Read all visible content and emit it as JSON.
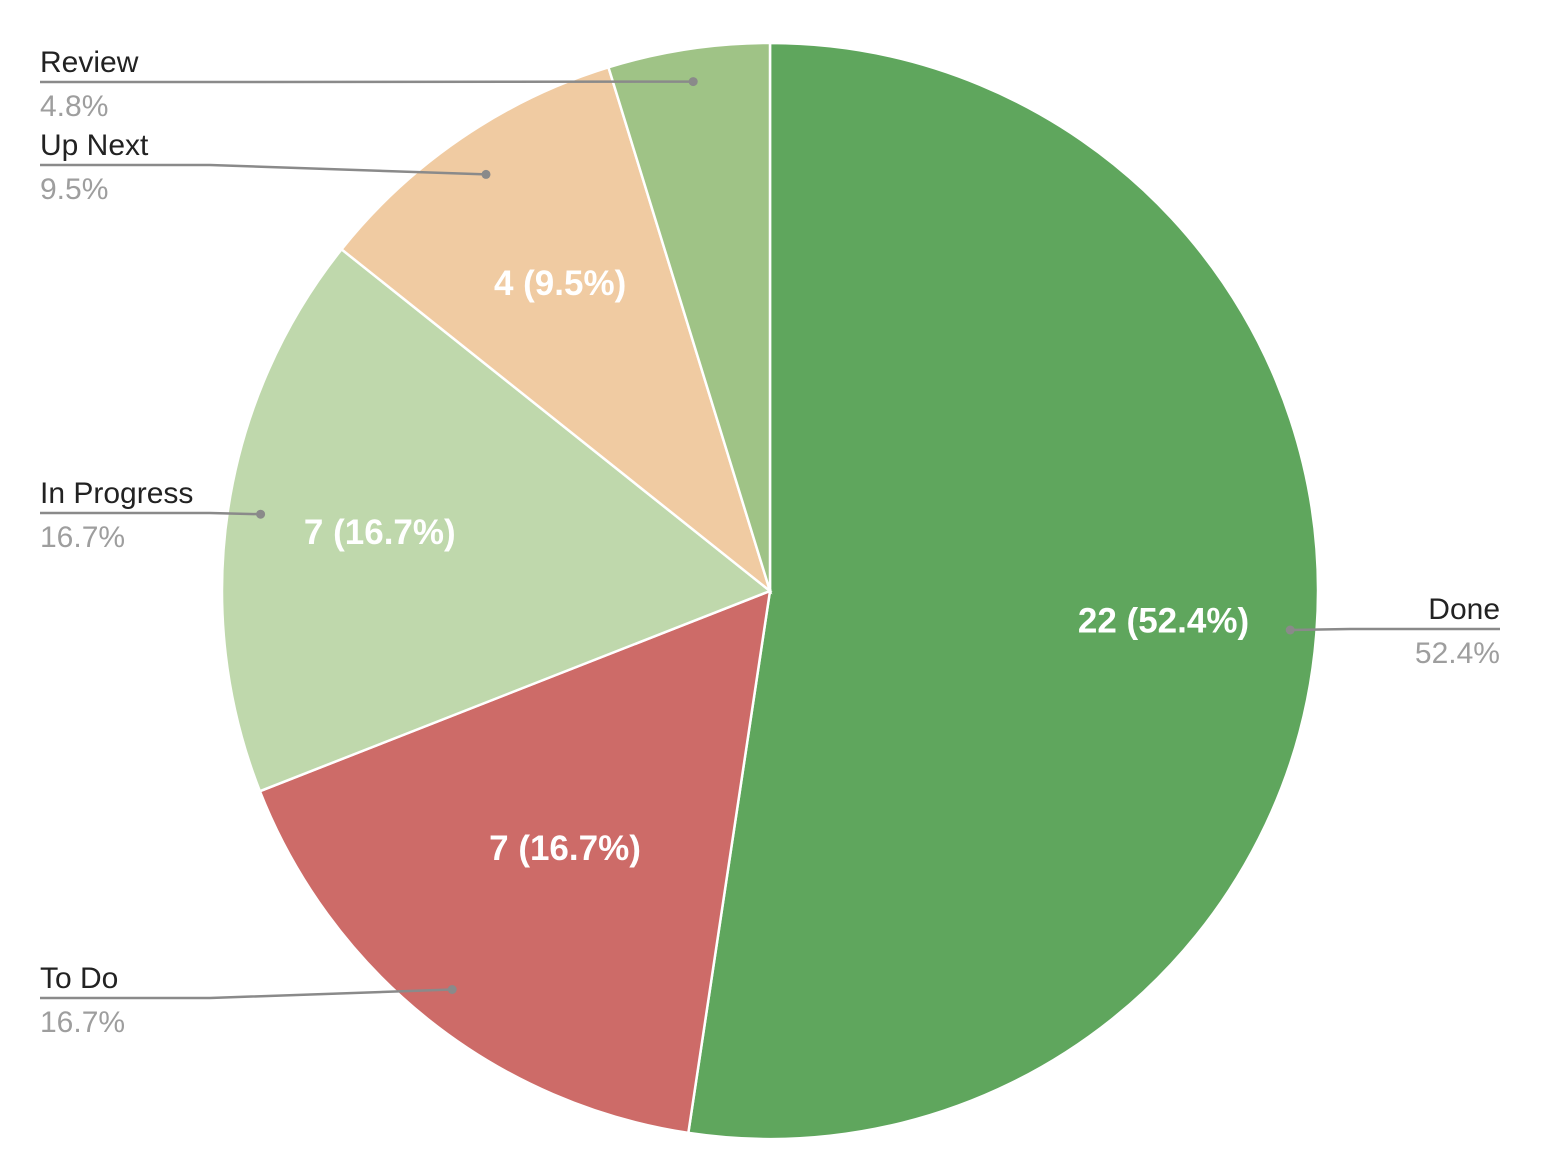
{
  "chart_data": {
    "type": "pie",
    "title": "",
    "slices": [
      {
        "name": "Done",
        "value": 22,
        "percent": "52.4%",
        "label": "22 (52.4%)",
        "color": "#5fa65d"
      },
      {
        "name": "To Do",
        "value": 7,
        "percent": "16.7%",
        "label": "7 (16.7%)",
        "color": "#cd6b68"
      },
      {
        "name": "In Progress",
        "value": 7,
        "percent": "16.7%",
        "label": "7 (16.7%)",
        "color": "#bfd8ac"
      },
      {
        "name": "Up Next",
        "value": 4,
        "percent": "9.5%",
        "label": "4 (9.5%)",
        "color": "#f0cba2"
      },
      {
        "name": "Review",
        "value": 2,
        "percent": "4.8%",
        "label": "",
        "color": "#9fc386"
      }
    ],
    "start_angle_deg": 0,
    "direction": "clockwise",
    "legend": "labeled leader lines"
  }
}
